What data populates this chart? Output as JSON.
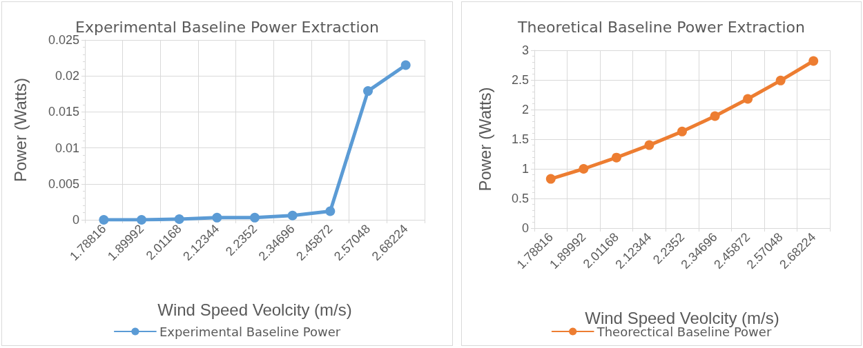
{
  "chart_data": [
    {
      "type": "line",
      "title": "Experimental Baseline Power Extraction",
      "xlabel": "Wind Speed Veolcity (m/s)",
      "ylabel": "Power (Watts)",
      "categories": [
        "1.78816",
        "1.89992",
        "2.01168",
        "2.12344",
        "2.2352",
        "2.34696",
        "2.45872",
        "2.57048",
        "2.68224"
      ],
      "series": [
        {
          "name": "Experimental Baseline Power",
          "color": "#5b9bd5",
          "values": [
            0,
            0,
            0.0001,
            0.0003,
            0.0003,
            0.0006,
            0.0012,
            0.0179,
            0.0215
          ]
        }
      ],
      "ylim": [
        0,
        0.025
      ],
      "yticks": [
        0,
        0.005,
        0.01,
        0.015,
        0.02,
        0.025
      ],
      "grid": true,
      "legend": "bottom",
      "marker": "circle",
      "line_style": "solid"
    },
    {
      "type": "line",
      "title": "Theoretical Baseline Power Extraction",
      "xlabel": "Wind Speed Veolcity (m/s)",
      "ylabel": "Power (Watts)",
      "categories": [
        "1.78816",
        "1.89992",
        "2.01168",
        "2.12344",
        "2.2352",
        "2.34696",
        "2.45872",
        "2.57048",
        "2.68224"
      ],
      "series": [
        {
          "name": "Theorectical Baseline Power",
          "color": "#ed7d31",
          "values": [
            0.83,
            1.0,
            1.19,
            1.4,
            1.63,
            1.89,
            2.18,
            2.49,
            2.82
          ]
        }
      ],
      "ylim": [
        0,
        3
      ],
      "yticks": [
        0,
        0.5,
        1,
        1.5,
        2,
        2.5,
        3
      ],
      "grid": true,
      "legend": "bottom",
      "marker": "circle",
      "line_style": "solid"
    }
  ]
}
